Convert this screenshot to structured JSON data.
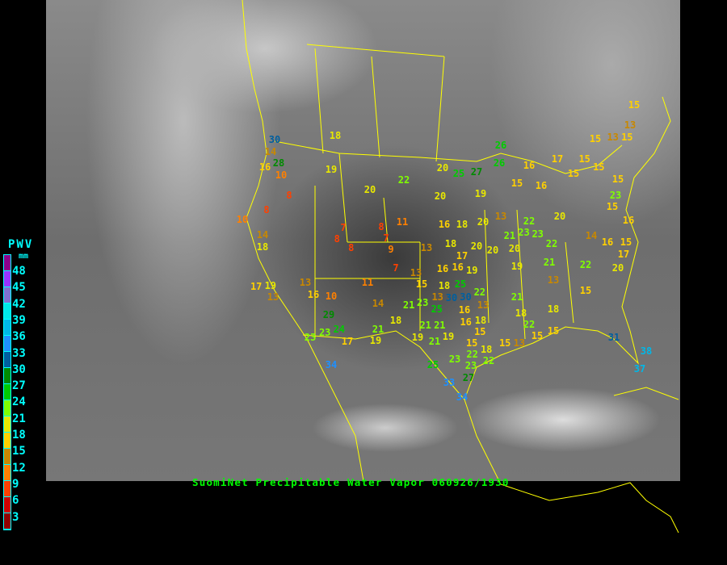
{
  "caption": "SuomiNet Precipitable Water Vapor 060926/1930",
  "legend": {
    "title": "PWV",
    "unit": "mm",
    "labels": [
      "48",
      "45",
      "42",
      "39",
      "36",
      "33",
      "30",
      "27",
      "24",
      "21",
      "18",
      "15",
      "12",
      "9",
      "6",
      "3"
    ],
    "colors": [
      "#8b008b",
      "#9933ff",
      "#8070d0",
      "#00e8e8",
      "#00b8e8",
      "#1e90ff",
      "#005f9f",
      "#008b00",
      "#00cc00",
      "#80ff00",
      "#e8e800",
      "#ffd000",
      "#c88800",
      "#ff8000",
      "#ff4000",
      "#d00000",
      "#900000"
    ]
  },
  "boundary_color": "#ffff00",
  "stations": [
    15,
    13,
    15,
    13,
    15,
    26,
    17,
    15,
    15,
    15,
    15,
    16,
    26,
    25,
    27,
    20,
    22,
    15,
    16,
    19,
    20,
    23,
    15,
    16,
    13,
    22,
    20,
    18,
    16,
    11,
    18,
    19,
    20,
    30,
    14,
    28,
    16,
    10,
    8,
    8,
    10,
    14,
    18,
    7,
    8,
    8,
    8,
    7,
    9,
    7,
    13,
    13,
    18,
    17,
    20,
    20,
    20,
    21,
    23,
    23,
    22,
    20,
    14,
    16,
    15,
    17,
    22,
    20,
    19,
    21,
    13,
    15,
    21,
    18,
    18,
    22,
    15,
    13,
    15,
    15,
    31,
    38,
    37,
    16,
    16,
    19,
    15,
    18,
    25,
    22,
    30,
    30,
    13,
    13,
    23,
    21,
    25,
    16,
    17,
    19,
    13,
    13,
    16,
    10,
    11,
    14,
    18,
    21,
    21,
    19,
    16,
    18,
    15,
    19,
    21,
    15,
    18,
    22,
    22,
    23,
    23,
    25,
    33,
    27,
    34,
    29,
    23,
    24,
    23,
    17,
    21,
    19,
    34
  ]
}
